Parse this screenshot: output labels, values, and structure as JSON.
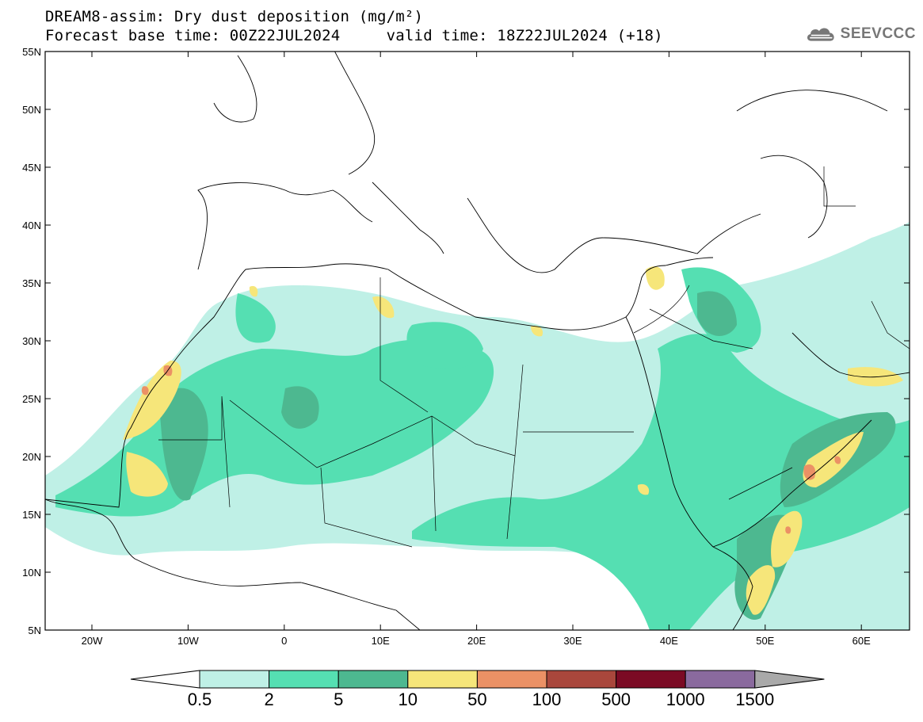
{
  "title": {
    "line1": "DREAM8-assim: Dry dust deposition (mg/m²)",
    "line2": "Forecast base time: 00Z22JUL2024     valid time: 18Z22JUL2024 (+18)"
  },
  "logo": {
    "text": "SEEVCCC",
    "icon": "cloud-icon"
  },
  "axes": {
    "lat_labels": [
      "55N",
      "50N",
      "45N",
      "40N",
      "35N",
      "30N",
      "25N",
      "20N",
      "15N",
      "10N",
      "5N"
    ],
    "lon_labels": [
      "20W",
      "10W",
      "0",
      "10E",
      "20E",
      "30E",
      "40E",
      "50E",
      "60E"
    ]
  },
  "legend": {
    "colors": [
      "#bff0e6",
      "#55dfb2",
      "#4db890",
      "#f6e67a",
      "#eb9165",
      "#a9473c",
      "#7b0a24",
      "#8a6a9e",
      "#a9a9a9"
    ],
    "labels": [
      "0.5",
      "2",
      "5",
      "10",
      "50",
      "100",
      "500",
      "1000",
      "1500"
    ]
  }
}
